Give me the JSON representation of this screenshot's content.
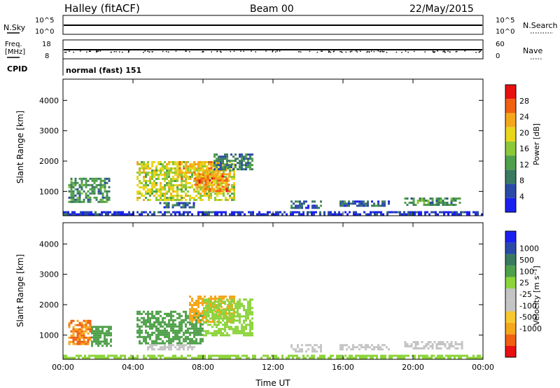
{
  "header": {
    "station": "Halley (fitACF)",
    "beam": "Beam 00",
    "date": "22/May/2015"
  },
  "strips": {
    "nsky_label": "N.Sky",
    "nsky_ticks": [
      "10^5",
      "10^0"
    ],
    "nsearch_label": "N.Search",
    "freq_label_1": "Freq.",
    "freq_label_2": "[MHz]",
    "freq_ticks": [
      "18",
      "8"
    ],
    "nave_ticks": [
      "60",
      "0"
    ],
    "nave_label": "Nave",
    "cpid_label": "CPID",
    "cpid_value": "normal (fast) 151"
  },
  "colors": {
    "power": [
      "#1a20f0",
      "#2a4aa8",
      "#3a7a60",
      "#4fa04a",
      "#8cc83a",
      "#e8d61c",
      "#f5a71c",
      "#f06010",
      "#e81010"
    ],
    "velocity": [
      "#e81010",
      "#f06010",
      "#f5a71c",
      "#f7c830",
      "#c4c4c4",
      "#c4c4c4",
      "#8cd43c",
      "#4fa04a",
      "#3a7a60",
      "#2a4aa8",
      "#1a20f0"
    ]
  },
  "chart_data": [
    {
      "type": "heatmap",
      "title": "Power",
      "xlabel": "Time UT",
      "ylabel": "Slant Range [km]",
      "xticks": [
        "00:00",
        "04:00",
        "08:00",
        "12:00",
        "16:00",
        "20:00",
        "00:00"
      ],
      "yticks": [
        "1000",
        "2000",
        "3000",
        "4000"
      ],
      "xlim": [
        0,
        24
      ],
      "ylim": [
        200,
        4700
      ],
      "colorbar_label": "Power [dB]",
      "colorbar_ticks": [
        "4",
        "8",
        "12",
        "16",
        "20",
        "24",
        "28"
      ],
      "regions": [
        {
          "t": [
            0.3,
            2.7
          ],
          "r": [
            650,
            1450
          ],
          "value": 12
        },
        {
          "t": [
            4.2,
            9.8
          ],
          "r": [
            750,
            2000
          ],
          "value": 20
        },
        {
          "t": [
            6.5,
            9.0
          ],
          "r": [
            1400,
            2000
          ],
          "value": 24
        },
        {
          "t": [
            8.6,
            10.8
          ],
          "r": [
            1700,
            2250
          ],
          "value": 10
        },
        {
          "t": [
            7.5,
            9.5
          ],
          "r": [
            1000,
            1600
          ],
          "value": 28
        },
        {
          "t": [
            5.5,
            7.5
          ],
          "r": [
            450,
            650
          ],
          "value": 8
        },
        {
          "t": [
            13.0,
            14.8
          ],
          "r": [
            450,
            700
          ],
          "value": 8
        },
        {
          "t": [
            15.8,
            18.6
          ],
          "r": [
            500,
            700
          ],
          "value": 8
        },
        {
          "t": [
            19.5,
            22.8
          ],
          "r": [
            550,
            800
          ],
          "value": 12
        },
        {
          "t": [
            0.0,
            24.0
          ],
          "r": [
            250,
            350
          ],
          "value": 4
        }
      ]
    },
    {
      "type": "heatmap",
      "title": "Velocity",
      "xlabel": "Time UT",
      "ylabel": "Slant Range [km]",
      "xticks": [
        "00:00",
        "04:00",
        "08:00",
        "12:00",
        "16:00",
        "20:00",
        "00:00"
      ],
      "yticks": [
        "1000",
        "2000",
        "3000",
        "4000"
      ],
      "xlim": [
        0,
        24
      ],
      "ylim": [
        200,
        4700
      ],
      "colorbar_label": "Velocity [m s⁻¹]",
      "colorbar_ticks": [
        "1000",
        "500",
        "100",
        "25",
        "-25",
        "-100",
        "-500",
        "-1000"
      ],
      "regions": [
        {
          "t": [
            0.3,
            1.6
          ],
          "r": [
            700,
            1500
          ],
          "value": -500
        },
        {
          "t": [
            1.6,
            2.7
          ],
          "r": [
            650,
            1300
          ],
          "value": 300
        },
        {
          "t": [
            4.2,
            8.0
          ],
          "r": [
            750,
            1800
          ],
          "value": 200
        },
        {
          "t": [
            7.2,
            9.8
          ],
          "r": [
            1400,
            2300
          ],
          "value": -300
        },
        {
          "t": [
            8.0,
            10.8
          ],
          "r": [
            1000,
            2200
          ],
          "value": 60
        },
        {
          "t": [
            4.8,
            7.5
          ],
          "r": [
            500,
            700
          ],
          "value": 0
        },
        {
          "t": [
            13.0,
            14.8
          ],
          "r": [
            450,
            700
          ],
          "value": 0
        },
        {
          "t": [
            15.8,
            18.6
          ],
          "r": [
            500,
            700
          ],
          "value": 10
        },
        {
          "t": [
            19.5,
            22.8
          ],
          "r": [
            550,
            800
          ],
          "value": -10
        },
        {
          "t": [
            0.0,
            24.0
          ],
          "r": [
            250,
            350
          ],
          "value": 50
        }
      ]
    }
  ]
}
